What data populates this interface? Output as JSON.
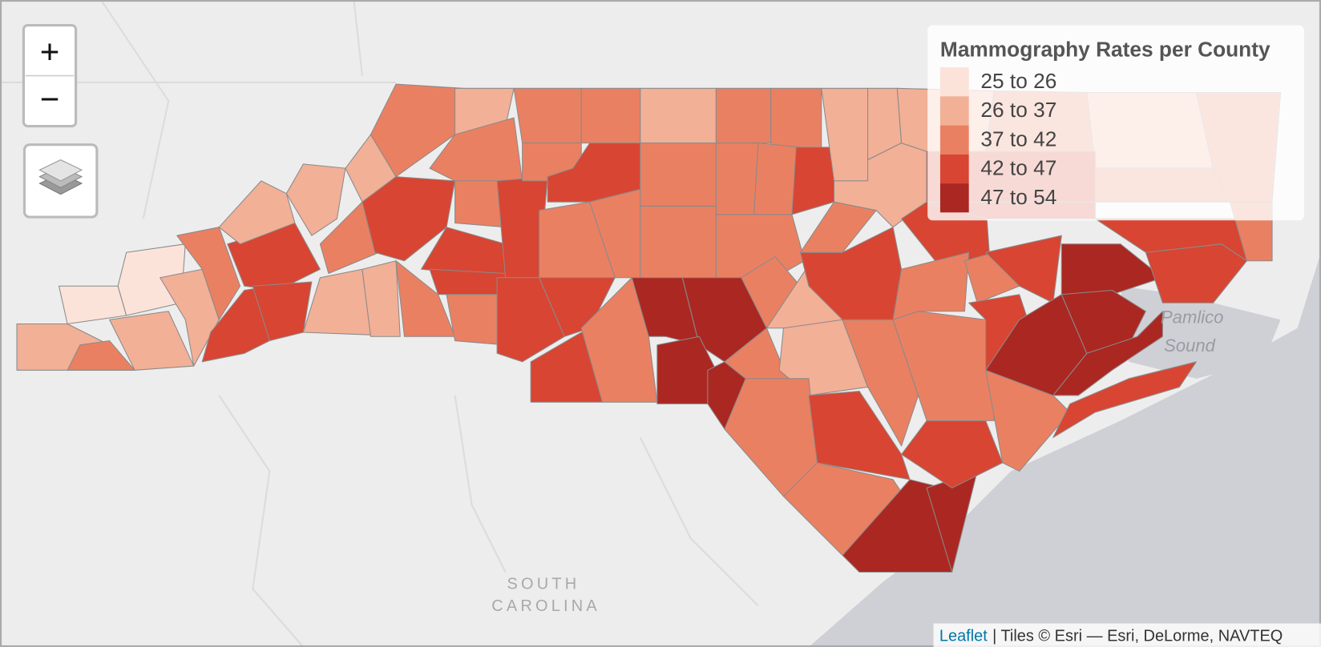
{
  "controls": {
    "zoom_in": "+",
    "zoom_out": "−"
  },
  "legend": {
    "title": "Mammography Rates per County",
    "items": [
      {
        "label": "25 to 26",
        "color": "#fce3da"
      },
      {
        "label": "26 to 37",
        "color": "#f2b097"
      },
      {
        "label": "37 to 42",
        "color": "#ea8062"
      },
      {
        "label": "42 to 47",
        "color": "#d84533"
      },
      {
        "label": "47 to 54",
        "color": "#ab2722"
      }
    ]
  },
  "map_labels": {
    "state_line1": "SOUTH",
    "state_line2": "CAROLINA",
    "water_line1": "Pamlico",
    "water_line2": "Sound"
  },
  "attribution": {
    "link": "Leaflet",
    "text": "| Tiles © Esri — Esri, DeLorme, NAVTEQ"
  }
}
